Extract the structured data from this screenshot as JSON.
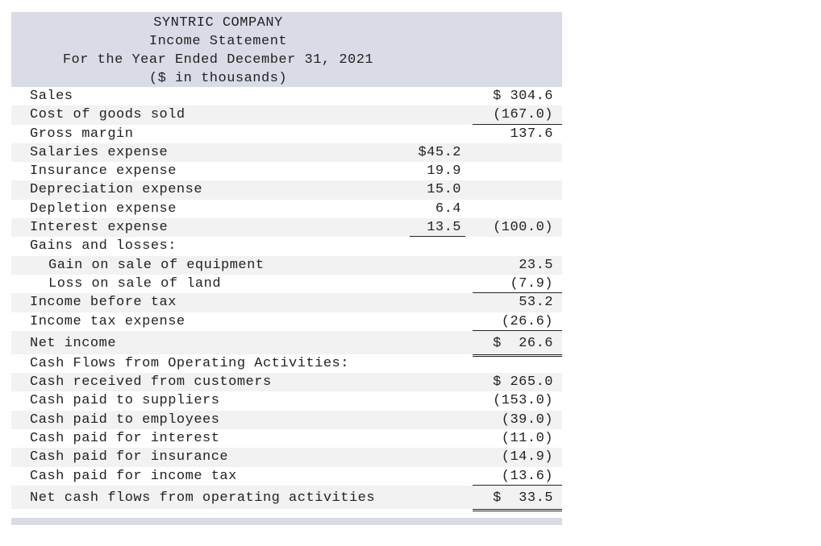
{
  "header": {
    "company": "SYNTRIC COMPANY",
    "title": "Income Statement",
    "period": "For the Year Ended December 31, 2021",
    "units": "($ in thousands)"
  },
  "rows": [
    {
      "label": "Sales",
      "c1": "",
      "c2": "$ 304.6"
    },
    {
      "label": "Cost of goods sold",
      "c1": "",
      "c2": "(167.0)"
    },
    {
      "label": "Gross margin",
      "c1": "",
      "c2": "137.6"
    },
    {
      "label": "Salaries expense",
      "c1": "$45.2",
      "c2": ""
    },
    {
      "label": "Insurance expense",
      "c1": "19.9",
      "c2": ""
    },
    {
      "label": "Depreciation expense",
      "c1": "15.0",
      "c2": ""
    },
    {
      "label": "Depletion expense",
      "c1": "6.4",
      "c2": ""
    },
    {
      "label": "Interest expense",
      "c1": "13.5",
      "c2": "(100.0)"
    },
    {
      "label": "Gains and losses:",
      "c1": "",
      "c2": ""
    },
    {
      "label": "Gain on sale of equipment",
      "c1": "",
      "c2": "23.5"
    },
    {
      "label": "Loss on sale of land",
      "c1": "",
      "c2": "(7.9)"
    },
    {
      "label": "Income before tax",
      "c1": "",
      "c2": "53.2"
    },
    {
      "label": "Income tax expense",
      "c1": "",
      "c2": "(26.6)"
    },
    {
      "label": "Net income",
      "c1": "",
      "c2": "$  26.6"
    },
    {
      "label": "Cash Flows from Operating Activities:",
      "c1": "",
      "c2": ""
    },
    {
      "label": "Cash received from customers",
      "c1": "",
      "c2": "$ 265.0"
    },
    {
      "label": "Cash paid to suppliers",
      "c1": "",
      "c2": "(153.0)"
    },
    {
      "label": "Cash paid to employees",
      "c1": "",
      "c2": "(39.0)"
    },
    {
      "label": "Cash paid for interest",
      "c1": "",
      "c2": "(11.0)"
    },
    {
      "label": "Cash paid for insurance",
      "c1": "",
      "c2": "(14.9)"
    },
    {
      "label": "Cash paid for income tax",
      "c1": "",
      "c2": "(13.6)"
    },
    {
      "label": "Net cash flows from operating activities",
      "c1": "",
      "c2": "$  33.5"
    }
  ]
}
